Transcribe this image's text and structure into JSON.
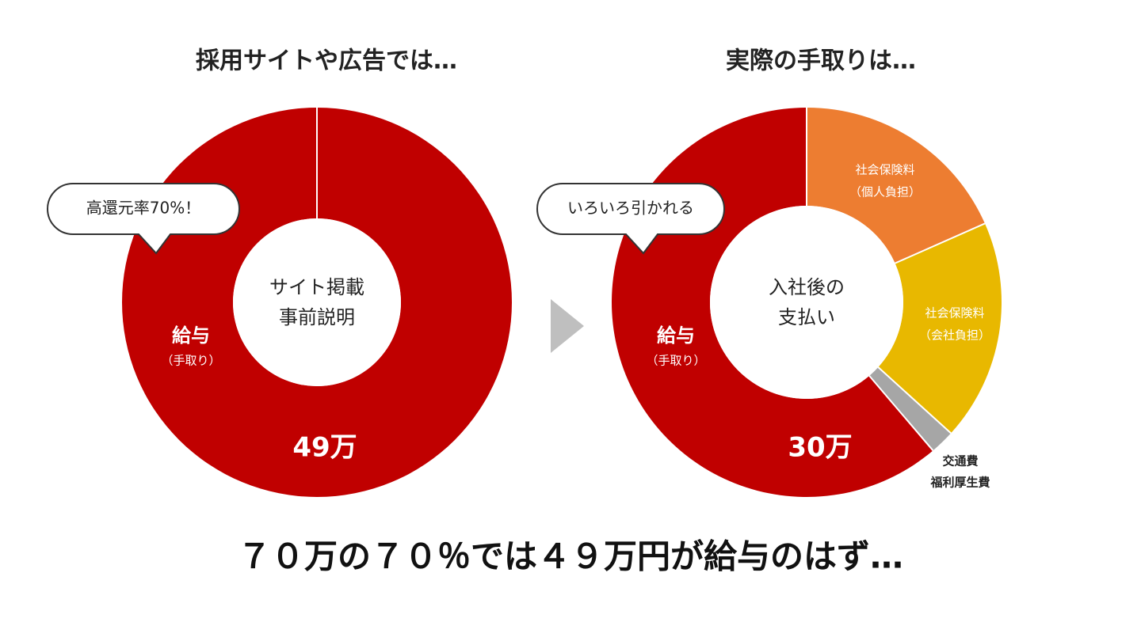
{
  "caption": "７０万の７０％では４９万円が給与のはず…",
  "chart_data": [
    {
      "type": "donut",
      "title": "採用サイトや広告では…",
      "callout": "高還元率70%！",
      "center_label": [
        "サイト掲載",
        "事前説明"
      ],
      "categories": [
        [
          "給与",
          "（手取り）"
        ]
      ],
      "values": [
        49
      ],
      "value_labels": [
        "49万"
      ],
      "colors": [
        "#c00000"
      ]
    },
    {
      "type": "donut",
      "title": "実際の手取りは…",
      "callout": "いろいろ引かれる",
      "center_label": [
        "入社後の",
        "支払い"
      ],
      "categories": [
        [
          "社会保険料",
          "（個人負担）"
        ],
        [
          "社会保険料",
          "（会社負担）"
        ],
        [
          "交通費",
          "福利厚生費"
        ],
        [
          "給与",
          "（手取り）"
        ]
      ],
      "values": [
        9,
        9,
        1,
        30
      ],
      "value_labels": [
        null,
        null,
        null,
        "30万"
      ],
      "colors": [
        "#ed7d31",
        "#e8b800",
        "#a6a6a6",
        "#c00000"
      ]
    }
  ]
}
